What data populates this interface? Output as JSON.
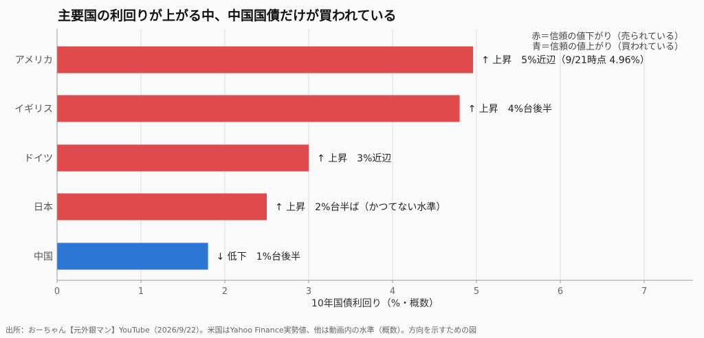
{
  "chart_data": {
    "type": "bar",
    "orientation": "horizontal",
    "title": "主要国の利回りが上がる中、中国国債だけが買われている",
    "xlabel": "10年国債利回り（%・概数）",
    "ylabel": "",
    "xlim": [
      0,
      7.6
    ],
    "xticks": [
      "0",
      "1",
      "2",
      "3",
      "4",
      "5",
      "6",
      "7"
    ],
    "grid": "vertical",
    "categories": [
      "アメリカ",
      "イギリス",
      "ドイツ",
      "日本",
      "中国"
    ],
    "values": [
      4.96,
      4.8,
      3.0,
      2.5,
      1.8
    ],
    "bar_colors": [
      "#e04a4d",
      "#e04a4d",
      "#e04a4d",
      "#e04a4d",
      "#2c77d6"
    ],
    "annotations": [
      "↑ 上昇　5%近辺（9/21時点 4.96%）",
      "↑ 上昇　4%台後半",
      "↑ 上昇　3%近辺",
      "↑ 上昇　2%台半ば（かつてない水準）",
      "↓ 低下　1%台後半"
    ],
    "legend": {
      "position": "top-right",
      "entries": [
        "赤＝信頼の値下がり（売られている）",
        "青＝信頼の値上がり（買われている）"
      ]
    }
  },
  "footer": "出所：おーちゃん【元外銀マン】YouTube（2026/9/22）。米国はYahoo Finance実勢値、他は動画内の水準（概数）。方向を示すための図"
}
